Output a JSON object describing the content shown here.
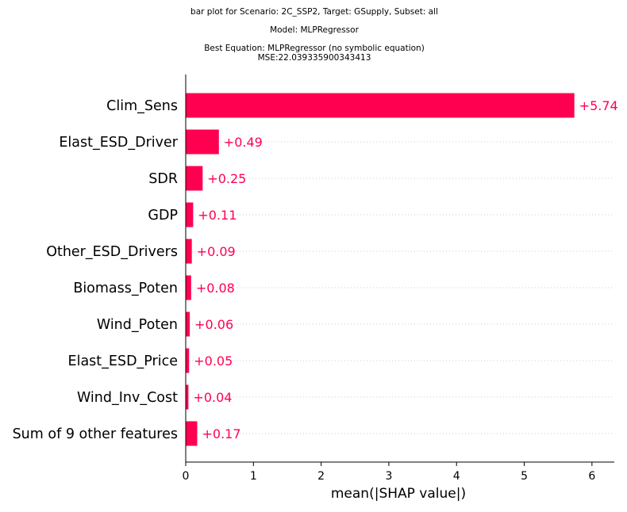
{
  "chart_data": {
    "type": "bar",
    "orientation": "horizontal",
    "title_lines": [
      "bar plot for Scenario: 2C_SSP2, Target: GSupply, Subset: all",
      "Model: MLPRegressor",
      "Best Equation: MLPRegressor (no symbolic equation)",
      "MSE:22.039335900343413"
    ],
    "categories": [
      "Clim_Sens",
      "Elast_ESD_Driver",
      "SDR",
      "GDP",
      "Other_ESD_Drivers",
      "Biomass_Poten",
      "Wind_Poten",
      "Elast_ESD_Price",
      "Wind_Inv_Cost",
      "Sum of 9 other features"
    ],
    "values": [
      5.74,
      0.49,
      0.25,
      0.11,
      0.09,
      0.08,
      0.06,
      0.05,
      0.04,
      0.17
    ],
    "value_labels": [
      "+5.74",
      "+0.49",
      "+0.25",
      "+0.11",
      "+0.09",
      "+0.08",
      "+0.06",
      "+0.05",
      "+0.04",
      "+0.17"
    ],
    "xlabel": "mean(|SHAP value|)",
    "xlim": [
      0,
      6.33
    ],
    "xticks": [
      0,
      1,
      2,
      3,
      4,
      5,
      6
    ],
    "xtick_labels": [
      "0",
      "1",
      "2",
      "3",
      "4",
      "5",
      "6"
    ],
    "grid": "dotted horizontal row guides",
    "colors": {
      "bar": "#ff0051",
      "label": "#ff0051",
      "axis": "#000000",
      "text": "#000000",
      "grid": "#cccccc"
    }
  }
}
